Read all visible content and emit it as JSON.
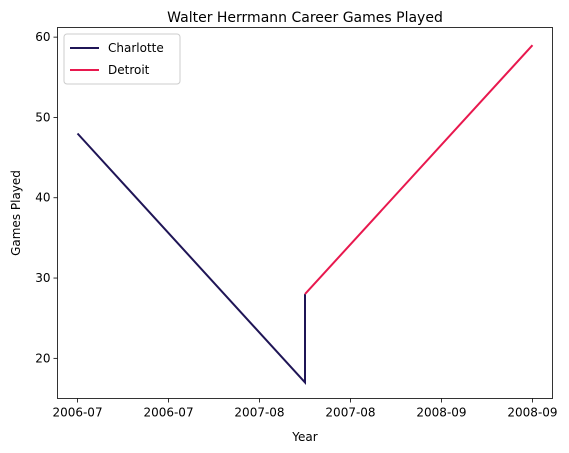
{
  "chart_data": {
    "type": "line",
    "title": "Walter Herrmann Career Games Played",
    "xlabel": "Year",
    "ylabel": "Games Played",
    "x_ticks": [
      0,
      1,
      2,
      3,
      4,
      5
    ],
    "x_tick_labels": [
      "2006-07",
      "2006-07",
      "2007-08",
      "2007-08",
      "2008-09",
      "2008-09"
    ],
    "xlim": [
      -0.22,
      5.22
    ],
    "y_ticks": [
      20,
      30,
      40,
      50,
      60
    ],
    "ylim": [
      15.0,
      61.2
    ],
    "grid": false,
    "legend_position": "top-left",
    "series": [
      {
        "name": "Charlotte",
        "color": "#1f1556",
        "x": [
          0,
          2.5,
          2.5
        ],
        "y": [
          48,
          17,
          28
        ]
      },
      {
        "name": "Detroit",
        "color": "#e8184e",
        "x": [
          2.5,
          5
        ],
        "y": [
          28,
          59
        ]
      }
    ]
  }
}
